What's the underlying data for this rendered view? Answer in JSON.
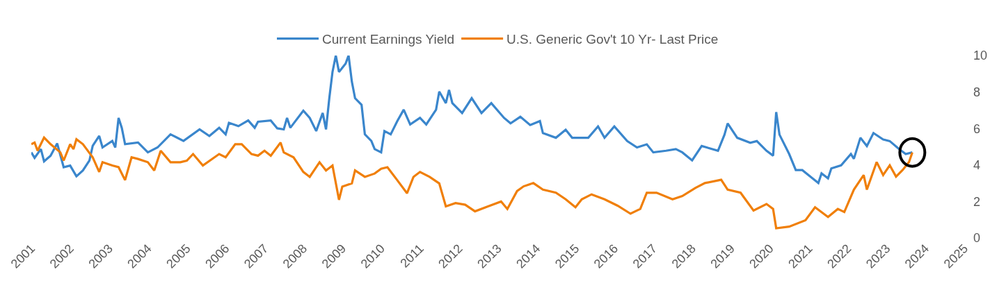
{
  "chart_data": {
    "type": "line",
    "xlim": [
      "2001-01-01",
      "2025-01-01"
    ],
    "xticks": [
      {
        "value": "2001-01-01",
        "label": "2001"
      },
      {
        "value": "2002-01-01",
        "label": "2002"
      },
      {
        "value": "2003-01-01",
        "label": "2003"
      },
      {
        "value": "2004-01-01",
        "label": "2004"
      },
      {
        "value": "2005-01-01",
        "label": "2005"
      },
      {
        "value": "2006-01-01",
        "label": "2006"
      },
      {
        "value": "2007-01-01",
        "label": "2007"
      },
      {
        "value": "2008-01-01",
        "label": "2008"
      },
      {
        "value": "2009-01-01",
        "label": "2009"
      },
      {
        "value": "2010-01-01",
        "label": "2010"
      },
      {
        "value": "2011-01-01",
        "label": "2011"
      },
      {
        "value": "2012-01-01",
        "label": "2012"
      },
      {
        "value": "2013-01-01",
        "label": "2013"
      },
      {
        "value": "2014-01-01",
        "label": "2014"
      },
      {
        "value": "2015-01-01",
        "label": "2015"
      },
      {
        "value": "2016-01-01",
        "label": "2016"
      },
      {
        "value": "2017-01-01",
        "label": "2017"
      },
      {
        "value": "2018-01-01",
        "label": "2018"
      },
      {
        "value": "2019-01-01",
        "label": "2019"
      },
      {
        "value": "2020-01-01",
        "label": "2020"
      },
      {
        "value": "2021-01-01",
        "label": "2021"
      },
      {
        "value": "2022-01-01",
        "label": "2022"
      },
      {
        "value": "2023-01-01",
        "label": "2023"
      },
      {
        "value": "2024-01-01",
        "label": "2024"
      },
      {
        "value": "2025-01-01",
        "label": "2025"
      }
    ],
    "ylim": [
      0,
      10
    ],
    "yticks": [
      0,
      2,
      4,
      6,
      8,
      10
    ],
    "legend": "top",
    "marker": "none",
    "line_style": "solid",
    "series": [
      {
        "name": "Current Earnings Yield",
        "color": "#3a86cc",
        "x": [
          "2001-01",
          "2001-02",
          "2001-04",
          "2001-05",
          "2001-07",
          "2001-09",
          "2001-11",
          "2002-01",
          "2002-03",
          "2002-05",
          "2002-07",
          "2002-08",
          "2002-10",
          "2002-11",
          "2003-02",
          "2003-03",
          "2003-04",
          "2003-05",
          "2003-06",
          "2003-10",
          "2004-01",
          "2004-04",
          "2004-08",
          "2004-12",
          "2005-05",
          "2005-08",
          "2005-11",
          "2006-01",
          "2006-02",
          "2006-05",
          "2006-08",
          "2006-10",
          "2006-11",
          "2007-03",
          "2007-05",
          "2007-07",
          "2007-08",
          "2007-09",
          "2008-01",
          "2008-03",
          "2008-05",
          "2008-07",
          "2008-08",
          "2008-09",
          "2008-10",
          "2008-11",
          "2008-12",
          "2009-02",
          "2009-03",
          "2009-04",
          "2009-05",
          "2009-07",
          "2009-08",
          "2009-10",
          "2009-11",
          "2010-01",
          "2010-02",
          "2010-04",
          "2010-06",
          "2010-08",
          "2010-10",
          "2011-01",
          "2011-03",
          "2011-06",
          "2011-07",
          "2011-09",
          "2011-10",
          "2011-11",
          "2012-02",
          "2012-05",
          "2012-08",
          "2012-11",
          "2013-03",
          "2013-05",
          "2013-08",
          "2013-11",
          "2014-02",
          "2014-03",
          "2014-07",
          "2014-10",
          "2014-12",
          "2015-05",
          "2015-08",
          "2015-10",
          "2016-01",
          "2016-05",
          "2016-08",
          "2016-11",
          "2017-01",
          "2017-05",
          "2017-08",
          "2017-10",
          "2018-01",
          "2018-04",
          "2018-09",
          "2018-11",
          "2018-12",
          "2019-03",
          "2019-07",
          "2019-09",
          "2019-12",
          "2020-02",
          "2020-03",
          "2020-04",
          "2020-07",
          "2020-09",
          "2020-11",
          "2021-04",
          "2021-05",
          "2021-07",
          "2021-08",
          "2021-11",
          "2022-02",
          "2022-03",
          "2022-05",
          "2022-07",
          "2022-09",
          "2022-12",
          "2023-02",
          "2023-05",
          "2023-07",
          "2023-09"
        ],
        "values": [
          4.69,
          4.39,
          4.87,
          4.2,
          4.51,
          5.18,
          3.88,
          3.97,
          3.38,
          3.7,
          4.24,
          5.05,
          5.59,
          4.96,
          5.32,
          4.96,
          6.58,
          6.04,
          5.14,
          5.23,
          4.69,
          4.96,
          5.68,
          5.32,
          5.95,
          5.59,
          6.04,
          5.68,
          6.31,
          6.13,
          6.44,
          6.04,
          6.37,
          6.44,
          6.01,
          5.95,
          6.58,
          6.04,
          6.98,
          6.58,
          5.86,
          6.85,
          5.95,
          7.66,
          9.1,
          10.0,
          9.1,
          9.55,
          10.0,
          8.56,
          7.66,
          7.3,
          5.68,
          5.32,
          4.87,
          4.69,
          5.86,
          5.68,
          6.4,
          7.03,
          6.22,
          6.58,
          6.22,
          7.03,
          8.02,
          7.39,
          8.11,
          7.39,
          6.85,
          7.66,
          6.85,
          7.39,
          6.58,
          6.28,
          6.64,
          6.19,
          6.41,
          5.75,
          5.49,
          5.93,
          5.49,
          5.49,
          6.11,
          5.49,
          6.11,
          5.31,
          4.96,
          5.13,
          4.69,
          4.78,
          4.87,
          4.69,
          4.25,
          5.04,
          4.78,
          5.66,
          6.28,
          5.49,
          5.22,
          5.31,
          4.78,
          4.51,
          6.9,
          5.66,
          4.6,
          3.72,
          3.72,
          3.01,
          3.54,
          3.27,
          3.81,
          3.98,
          4.6,
          4.34,
          5.49,
          5.04,
          5.75,
          5.4,
          5.31,
          4.87,
          4.6,
          4.69
        ]
      },
      {
        "name": "U.S. Generic Gov't 10 Yr- Last Price",
        "color": "#f07f09",
        "x": [
          "2001-01",
          "2001-02",
          "2001-03",
          "2001-05",
          "2001-07",
          "2001-10",
          "2001-11",
          "2002-01",
          "2002-02",
          "2002-03",
          "2002-05",
          "2002-08",
          "2002-10",
          "2002-11",
          "2003-02",
          "2003-04",
          "2003-06",
          "2003-08",
          "2003-10",
          "2004-01",
          "2004-03",
          "2004-05",
          "2004-08",
          "2004-11",
          "2005-01",
          "2005-03",
          "2005-06",
          "2005-11",
          "2006-01",
          "2006-04",
          "2006-06",
          "2006-09",
          "2006-11",
          "2007-01",
          "2007-03",
          "2007-06",
          "2007-07",
          "2007-10",
          "2008-01",
          "2008-03",
          "2008-06",
          "2008-08",
          "2008-10",
          "2008-12",
          "2009-01",
          "2009-04",
          "2009-05",
          "2009-08",
          "2009-11",
          "2010-01",
          "2010-03",
          "2010-06",
          "2010-09",
          "2010-11",
          "2011-01",
          "2011-04",
          "2011-07",
          "2011-09",
          "2011-12",
          "2012-03",
          "2012-06",
          "2012-10",
          "2013-02",
          "2013-04",
          "2013-07",
          "2013-09",
          "2013-12",
          "2014-03",
          "2014-07",
          "2014-10",
          "2015-01",
          "2015-03",
          "2015-06",
          "2015-10",
          "2016-02",
          "2016-06",
          "2016-09",
          "2016-11",
          "2017-02",
          "2017-07",
          "2017-10",
          "2018-02",
          "2018-05",
          "2018-10",
          "2018-12",
          "2019-04",
          "2019-08",
          "2019-12",
          "2020-02",
          "2020-03",
          "2020-07",
          "2020-12",
          "2021-03",
          "2021-07",
          "2021-10",
          "2021-12",
          "2022-03",
          "2022-06",
          "2022-07",
          "2022-10",
          "2022-12",
          "2023-02",
          "2023-04",
          "2023-06",
          "2023-08",
          "2023-09"
        ],
        "values": [
          5.14,
          5.23,
          4.78,
          5.5,
          5.14,
          4.69,
          4.24,
          5.14,
          4.87,
          5.41,
          5.14,
          4.42,
          3.62,
          4.15,
          3.97,
          3.88,
          3.17,
          4.42,
          4.33,
          4.15,
          3.7,
          4.78,
          4.15,
          4.15,
          4.24,
          4.6,
          3.97,
          4.6,
          4.42,
          5.14,
          5.14,
          4.6,
          4.51,
          4.78,
          4.51,
          5.23,
          4.69,
          4.42,
          3.62,
          3.35,
          4.15,
          3.7,
          3.97,
          2.09,
          2.81,
          2.99,
          3.7,
          3.35,
          3.53,
          3.79,
          3.88,
          3.17,
          2.45,
          3.35,
          3.62,
          3.35,
          2.99,
          1.73,
          1.91,
          1.82,
          1.46,
          1.73,
          2.0,
          1.59,
          2.57,
          2.83,
          3.01,
          2.65,
          2.48,
          2.12,
          1.68,
          2.12,
          2.39,
          2.12,
          1.77,
          1.33,
          1.59,
          2.48,
          2.48,
          2.12,
          2.3,
          2.74,
          3.01,
          3.19,
          2.65,
          2.48,
          1.5,
          1.86,
          1.59,
          0.53,
          0.62,
          0.97,
          1.68,
          1.15,
          1.59,
          1.42,
          2.65,
          3.45,
          2.65,
          4.16,
          3.45,
          3.98,
          3.36,
          3.72,
          4.16,
          4.69
        ]
      }
    ]
  }
}
